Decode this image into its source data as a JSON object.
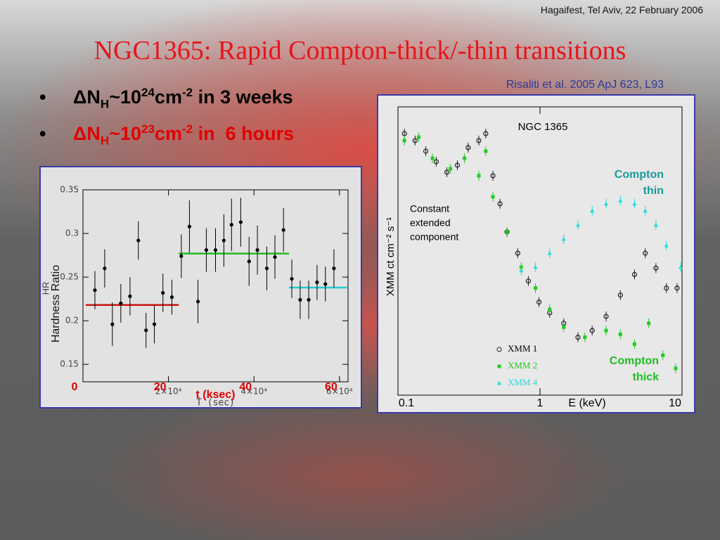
{
  "header": "Hagaifest, Tel Aviv, 22 February 2006",
  "title": "NGC1365: Rapid Compton-thick/-thin transitions",
  "reference": "Risaliti et al. 2005 ApJ 623, L93",
  "bullets": [
    {
      "color": "#000000",
      "parts": [
        {
          "text": "ΔN"
        },
        {
          "sub": "H"
        },
        {
          "text": "~10"
        },
        {
          "sup": "24"
        },
        {
          "text": "cm"
        },
        {
          "sup": "-2"
        },
        {
          "text": " in 3 weeks"
        }
      ]
    },
    {
      "color": "#e00000",
      "parts": [
        {
          "text": "ΔN"
        },
        {
          "sub": "H"
        },
        {
          "text": "~10"
        },
        {
          "sup": "23"
        },
        {
          "text": "cm"
        },
        {
          "sup": "-2"
        },
        {
          "text": " in  6 hours"
        }
      ]
    }
  ],
  "chart_data": [
    {
      "type": "errorbar",
      "xlabel": "T (sec)",
      "ylabel": "HR",
      "overlay_ylabel": "Hardness Ratio",
      "overlay_xlabel": "t (ksec)",
      "overlay_xticks": [
        {
          "value": 0,
          "label": "0"
        },
        {
          "value": 20000,
          "label": "20"
        },
        {
          "value": 40000,
          "label": "40"
        },
        {
          "value": 60000,
          "label": "60"
        }
      ],
      "xlim": [
        0,
        62000
      ],
      "ylim": [
        0.13,
        0.35
      ],
      "xticks": [
        {
          "value": 20000,
          "label": "2×10⁴"
        },
        {
          "value": 40000,
          "label": "4×10⁴"
        },
        {
          "value": 60000,
          "label": "6×10⁴"
        }
      ],
      "yticks": [
        0.15,
        0.2,
        0.25,
        0.3,
        0.35
      ],
      "color": "#000000",
      "x": [
        2790,
        5080,
        6880,
        8850,
        11000,
        12950,
        14750,
        16700,
        18700,
        20800,
        23000,
        24900,
        26900,
        28850,
        31000,
        32950,
        34750,
        36900,
        38850,
        40800,
        43000,
        44900,
        46900,
        48850,
        50800,
        52800,
        54750,
        56700,
        58700
      ],
      "values": [
        0.235,
        0.26,
        0.196,
        0.22,
        0.228,
        0.292,
        0.189,
        0.196,
        0.232,
        0.227,
        0.274,
        0.308,
        0.222,
        0.281,
        0.281,
        0.292,
        0.31,
        0.313,
        0.268,
        0.281,
        0.26,
        0.273,
        0.304,
        0.248,
        0.224,
        0.224,
        0.244,
        0.242,
        0.26
      ],
      "errors": [
        0.022,
        0.022,
        0.025,
        0.022,
        0.022,
        0.022,
        0.02,
        0.022,
        0.022,
        0.02,
        0.025,
        0.03,
        0.025,
        0.025,
        0.025,
        0.03,
        0.03,
        0.028,
        0.028,
        0.028,
        0.025,
        0.025,
        0.025,
        0.022,
        0.022,
        0.022,
        0.02,
        0.02,
        0.022
      ],
      "fits": [
        {
          "color": "#cc1111",
          "value": 0.218,
          "x": [
            650,
            22400
          ]
        },
        {
          "color": "#22bb22",
          "value": 0.277,
          "x": [
            22400,
            48200
          ]
        },
        {
          "color": "#22cccc",
          "value": 0.238,
          "x": [
            48200,
            61800
          ]
        }
      ]
    },
    {
      "type": "scatter",
      "title": "NGC 1365",
      "xlabel": "E (keV)",
      "ylabel": "XMM ct cm⁻² s⁻¹",
      "log_x": true,
      "log_y": true,
      "xlim": [
        0.1,
        10
      ],
      "ylim": [
        0.001,
        1
      ],
      "xticks": [
        0.1,
        1,
        10
      ],
      "annotations": {
        "thin": [
          "Compton",
          "thin"
        ],
        "thick": [
          "Compton",
          "thick"
        ],
        "constant": [
          "Constant",
          "extended",
          "component"
        ]
      },
      "series": [
        {
          "name": "XMM 1",
          "color": "#222222",
          "marker": "circle",
          "x": [
            0.111,
            0.132,
            0.157,
            0.186,
            0.221,
            0.262,
            0.312,
            0.371,
            0.415,
            0.466,
            0.523,
            0.586,
            0.697,
            0.828,
            0.984,
            1.17,
            1.47,
            1.85,
            2.33,
            2.92,
            3.68,
            4.63,
            5.51,
            6.55,
            7.76,
            9.23
          ],
          "values": [
            0.527,
            0.446,
            0.346,
            0.269,
            0.209,
            0.247,
            0.377,
            0.446,
            0.527,
            0.192,
            0.098,
            0.05,
            0.03,
            0.0154,
            0.0093,
            0.0072,
            0.0056,
            0.004,
            0.0047,
            0.0066,
            0.011,
            0.018,
            0.03,
            0.021,
            0.013,
            0.013
          ]
        },
        {
          "name": "XMM 2",
          "color": "#22cc22",
          "marker": "square",
          "x": [
            0.111,
            0.14,
            0.175,
            0.234,
            0.294,
            0.371,
            0.415,
            0.466,
            0.586,
            0.738,
            0.929,
            1.17,
            1.47,
            2.07,
            2.92,
            3.68,
            4.63,
            5.83,
            7.33,
            9.02
          ],
          "values": [
            0.446,
            0.484,
            0.292,
            0.227,
            0.292,
            0.192,
            0.346,
            0.116,
            0.05,
            0.0215,
            0.013,
            0.0078,
            0.0051,
            0.004,
            0.0047,
            0.0043,
            0.0034,
            0.0056,
            0.0026,
            0.0019
          ]
        },
        {
          "name": "XMM 4",
          "color": "#22dddd",
          "marker": "triangle",
          "x": [
            0.738,
            0.929,
            1.17,
            1.47,
            1.85,
            2.33,
            2.92,
            3.68,
            4.63,
            5.51,
            6.55,
            7.76,
            9.78
          ],
          "values": [
            0.0198,
            0.0215,
            0.03,
            0.042,
            0.059,
            0.083,
            0.098,
            0.106,
            0.098,
            0.083,
            0.059,
            0.036,
            0.0215
          ]
        }
      ]
    }
  ]
}
